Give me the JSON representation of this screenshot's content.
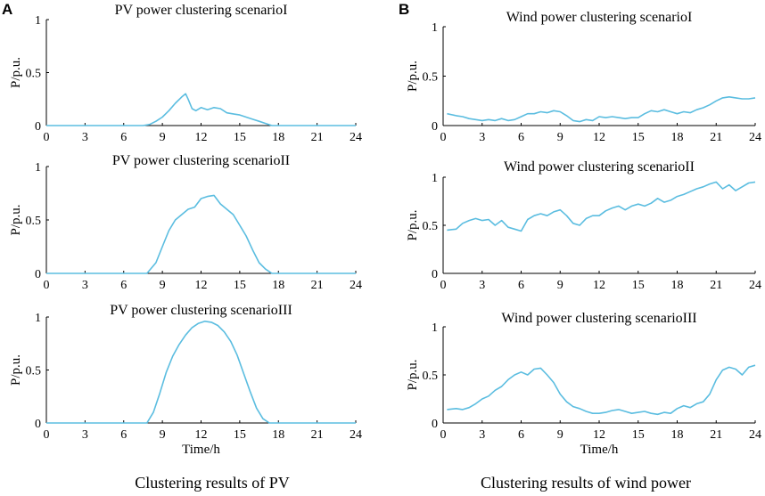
{
  "panels": {
    "a": {
      "letter": "A",
      "caption": "Clustering results of PV"
    },
    "b": {
      "letter": "B",
      "caption": "Clustering results of wind power"
    }
  },
  "line_color": "#5bbde0",
  "chart_data": [
    {
      "id": "pv1",
      "panel": "A",
      "type": "line",
      "title": "PV power clustering scenarioI",
      "xlabel": "",
      "ylabel": "P/p.u.",
      "xlim": [
        0,
        24
      ],
      "ylim": [
        0,
        1
      ],
      "xticks": [
        0,
        3,
        6,
        9,
        12,
        15,
        18,
        21,
        24
      ],
      "yticks": [
        0,
        0.5,
        1
      ],
      "x": [
        0,
        7.5,
        8,
        8.5,
        9,
        9.5,
        10,
        10.5,
        10.8,
        11,
        11.3,
        11.6,
        12,
        12.5,
        13,
        13.5,
        14,
        14.5,
        15,
        15.5,
        16,
        16.5,
        17,
        17.5,
        24
      ],
      "y": [
        0,
        0,
        0.01,
        0.04,
        0.08,
        0.14,
        0.21,
        0.27,
        0.3,
        0.25,
        0.16,
        0.14,
        0.17,
        0.15,
        0.17,
        0.16,
        0.12,
        0.11,
        0.1,
        0.08,
        0.06,
        0.04,
        0.02,
        0,
        0
      ]
    },
    {
      "id": "pv2",
      "panel": "A",
      "type": "line",
      "title": "PV power clustering scenarioII",
      "xlabel": "",
      "ylabel": "P/p.u.",
      "xlim": [
        0,
        24
      ],
      "ylim": [
        0,
        1
      ],
      "xticks": [
        0,
        3,
        6,
        9,
        12,
        15,
        18,
        21,
        24
      ],
      "yticks": [
        0,
        0.5,
        1
      ],
      "x": [
        0,
        7.8,
        8.5,
        9,
        9.5,
        10,
        10.5,
        11,
        11.5,
        12,
        12.5,
        13,
        13.5,
        14,
        14.5,
        15,
        15.5,
        16,
        16.5,
        17,
        17.5,
        24
      ],
      "y": [
        0,
        0,
        0.1,
        0.25,
        0.4,
        0.5,
        0.55,
        0.6,
        0.62,
        0.7,
        0.72,
        0.73,
        0.65,
        0.6,
        0.55,
        0.45,
        0.35,
        0.22,
        0.1,
        0.04,
        0,
        0
      ]
    },
    {
      "id": "pv3",
      "panel": "A",
      "type": "line",
      "title": "PV power clustering scenarioIII",
      "xlabel": "Time/h",
      "ylabel": "P/p.u.",
      "xlim": [
        0,
        24
      ],
      "ylim": [
        0,
        1
      ],
      "xticks": [
        0,
        3,
        6,
        9,
        12,
        15,
        18,
        21,
        24
      ],
      "yticks": [
        0,
        0.5,
        1
      ],
      "x": [
        0,
        7.8,
        8.3,
        8.8,
        9.3,
        9.8,
        10.3,
        10.8,
        11.3,
        11.8,
        12.3,
        12.8,
        13.3,
        13.8,
        14.3,
        14.8,
        15.3,
        15.8,
        16.3,
        16.8,
        17.3,
        24
      ],
      "y": [
        0,
        0,
        0.1,
        0.28,
        0.48,
        0.63,
        0.74,
        0.83,
        0.9,
        0.94,
        0.96,
        0.95,
        0.92,
        0.86,
        0.77,
        0.64,
        0.47,
        0.3,
        0.14,
        0.04,
        0,
        0
      ]
    },
    {
      "id": "wind1",
      "panel": "B",
      "type": "line",
      "title": "Wind power clustering scenarioI",
      "xlabel": "",
      "ylabel": "P/p.u.",
      "xlim": [
        0,
        24
      ],
      "ylim": [
        0,
        1
      ],
      "xticks": [
        0,
        3,
        6,
        9,
        12,
        15,
        18,
        21,
        24
      ],
      "yticks": [
        0,
        0.5,
        1
      ],
      "x": [
        0.3,
        1,
        1.5,
        2,
        2.5,
        3,
        3.5,
        4,
        4.5,
        5,
        5.5,
        6,
        6.5,
        7,
        7.5,
        8,
        8.5,
        9,
        9.5,
        10,
        10.5,
        11,
        11.5,
        12,
        12.5,
        13,
        13.5,
        14,
        14.5,
        15,
        15.5,
        16,
        16.5,
        17,
        17.5,
        18,
        18.5,
        19,
        19.5,
        20,
        20.5,
        21,
        21.5,
        22,
        22.5,
        23,
        23.5,
        24
      ],
      "y": [
        0.12,
        0.1,
        0.09,
        0.07,
        0.06,
        0.05,
        0.06,
        0.05,
        0.07,
        0.05,
        0.06,
        0.09,
        0.12,
        0.12,
        0.14,
        0.13,
        0.15,
        0.14,
        0.1,
        0.05,
        0.04,
        0.06,
        0.05,
        0.09,
        0.08,
        0.09,
        0.08,
        0.07,
        0.08,
        0.08,
        0.12,
        0.15,
        0.14,
        0.16,
        0.14,
        0.12,
        0.14,
        0.13,
        0.16,
        0.18,
        0.21,
        0.25,
        0.28,
        0.29,
        0.28,
        0.27,
        0.27,
        0.28
      ]
    },
    {
      "id": "wind2",
      "panel": "B",
      "type": "line",
      "title": "Wind power clustering scenarioII",
      "xlabel": "",
      "ylabel": "P/p.u.",
      "xlim": [
        0,
        24
      ],
      "ylim": [
        0,
        1
      ],
      "xticks": [
        0,
        3,
        6,
        9,
        12,
        15,
        18,
        21,
        24
      ],
      "yticks": [
        0,
        0.5,
        1
      ],
      "x": [
        0.3,
        1,
        1.5,
        2,
        2.5,
        3,
        3.5,
        4,
        4.5,
        5,
        5.5,
        6,
        6.5,
        7,
        7.5,
        8,
        8.5,
        9,
        9.5,
        10,
        10.5,
        11,
        11.5,
        12,
        12.5,
        13,
        13.5,
        14,
        14.5,
        15,
        15.5,
        16,
        16.5,
        17,
        17.5,
        18,
        18.5,
        19,
        19.5,
        20,
        20.5,
        21,
        21.5,
        22,
        22.5,
        23,
        23.5,
        24
      ],
      "y": [
        0.45,
        0.46,
        0.52,
        0.55,
        0.57,
        0.55,
        0.56,
        0.5,
        0.55,
        0.48,
        0.46,
        0.44,
        0.56,
        0.6,
        0.62,
        0.6,
        0.64,
        0.66,
        0.6,
        0.52,
        0.5,
        0.57,
        0.6,
        0.6,
        0.65,
        0.68,
        0.7,
        0.66,
        0.7,
        0.72,
        0.7,
        0.73,
        0.78,
        0.74,
        0.76,
        0.8,
        0.82,
        0.85,
        0.88,
        0.9,
        0.93,
        0.95,
        0.88,
        0.92,
        0.86,
        0.9,
        0.94,
        0.95
      ]
    },
    {
      "id": "wind3",
      "panel": "B",
      "type": "line",
      "title": "Wind power clustering scenarioIII",
      "xlabel": "Time/h",
      "ylabel": "P/p.u.",
      "xlim": [
        0,
        24
      ],
      "ylim": [
        0,
        1
      ],
      "xticks": [
        0,
        3,
        6,
        9,
        12,
        15,
        18,
        21,
        24
      ],
      "yticks": [
        0,
        0.5,
        1
      ],
      "x": [
        0.3,
        1,
        1.5,
        2,
        2.5,
        3,
        3.5,
        4,
        4.5,
        5,
        5.5,
        6,
        6.5,
        7,
        7.5,
        8,
        8.5,
        9,
        9.5,
        10,
        10.5,
        11,
        11.5,
        12,
        12.5,
        13,
        13.5,
        14,
        14.5,
        15,
        15.5,
        16,
        16.5,
        17,
        17.5,
        18,
        18.5,
        19,
        19.5,
        20,
        20.5,
        21,
        21.5,
        22,
        22.5,
        23,
        23.5,
        24
      ],
      "y": [
        0.14,
        0.15,
        0.14,
        0.16,
        0.2,
        0.25,
        0.28,
        0.34,
        0.38,
        0.45,
        0.5,
        0.53,
        0.5,
        0.56,
        0.57,
        0.5,
        0.42,
        0.3,
        0.22,
        0.17,
        0.15,
        0.12,
        0.1,
        0.1,
        0.11,
        0.13,
        0.14,
        0.12,
        0.1,
        0.11,
        0.12,
        0.1,
        0.09,
        0.11,
        0.1,
        0.15,
        0.18,
        0.16,
        0.2,
        0.22,
        0.3,
        0.45,
        0.55,
        0.58,
        0.56,
        0.5,
        0.58,
        0.6
      ]
    }
  ]
}
